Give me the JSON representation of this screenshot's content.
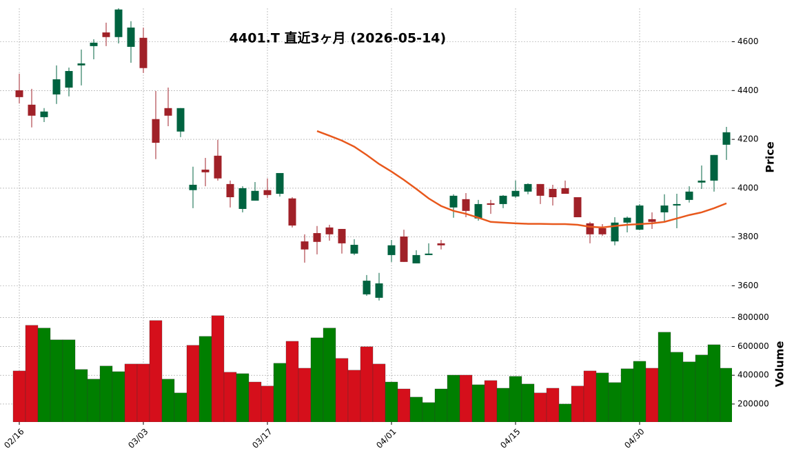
{
  "chart_data": [
    {
      "type": "candlestick",
      "title": "4401.T  直近3ヶ月  (2026-05-14)",
      "y_label": "Price",
      "open": [
        4401,
        4342,
        4291,
        4384,
        4412,
        4503,
        4582,
        4638,
        4619,
        4579,
        4616,
        4283,
        4328,
        4232,
        3992,
        4076,
        4133,
        4017,
        3915,
        3949,
        3992,
        3977,
        3958,
        3782,
        3816,
        3839,
        3833,
        3732,
        3565,
        3551,
        3726,
        3802,
        3692,
        3726,
        3774,
        3921,
        3955,
        3876,
        3938,
        3935,
        3966,
        3986,
        4017,
        3997,
        4000,
        3963,
        3856,
        3836,
        3782,
        3859,
        3830,
        3873,
        3901,
        3929,
        3952,
        4023,
        4031,
        4178
      ],
      "high": [
        4469,
        4407,
        4328,
        4503,
        4494,
        4568,
        4610,
        4678,
        4745,
        4684,
        4658,
        4398,
        4412,
        4328,
        4088,
        4124,
        4198,
        4031,
        4008,
        4025,
        4040,
        4062,
        3963,
        3811,
        3845,
        3850,
        3833,
        3791,
        3644,
        3653,
        3788,
        3830,
        3746,
        3774,
        3788,
        3975,
        3980,
        3952,
        3952,
        3972,
        4031,
        4020,
        4017,
        4014,
        4031,
        3963,
        3862,
        3853,
        3881,
        3884,
        3935,
        3901,
        3975,
        3977,
        4008,
        4093,
        4136,
        4251
      ],
      "low": [
        4347,
        4249,
        4271,
        4345,
        4376,
        4421,
        4528,
        4582,
        4593,
        4514,
        4472,
        4119,
        4254,
        4209,
        3918,
        4008,
        4031,
        3921,
        3901,
        3949,
        3960,
        3966,
        3839,
        3695,
        3729,
        3785,
        3732,
        3726,
        3559,
        3540,
        3698,
        3698,
        3692,
        3726,
        3749,
        3879,
        3881,
        3867,
        3895,
        3918,
        3960,
        3975,
        3935,
        3929,
        3977,
        3881,
        3774,
        3805,
        3766,
        3819,
        3828,
        3833,
        3862,
        3836,
        3941,
        3997,
        3986,
        4116
      ],
      "close": [
        4373,
        4297,
        4314,
        4446,
        4480,
        4511,
        4596,
        4619,
        4732,
        4658,
        4492,
        4186,
        4297,
        4328,
        4014,
        4065,
        4040,
        3963,
        4000,
        3989,
        3972,
        4062,
        3847,
        3749,
        3780,
        3811,
        3774,
        3768,
        3621,
        3610,
        3766,
        3698,
        3726,
        3732,
        3766,
        3969,
        3907,
        3935,
        3932,
        3969,
        3989,
        4017,
        3969,
        3963,
        3977,
        3881,
        3811,
        3811,
        3859,
        3879,
        3929,
        3862,
        3929,
        3935,
        3986,
        4031,
        4136,
        4229
      ],
      "up_color": "#006340",
      "down_color": "#a02128",
      "moving_average": {
        "color": "#e8581c",
        "values": [
          null,
          null,
          null,
          null,
          null,
          null,
          null,
          null,
          null,
          null,
          null,
          null,
          null,
          null,
          null,
          null,
          null,
          null,
          null,
          null,
          null,
          null,
          null,
          null,
          4234,
          4215,
          4195,
          4170,
          4136,
          4099,
          4068,
          4034,
          3997,
          3958,
          3927,
          3907,
          3895,
          3879,
          3862,
          3859,
          3856,
          3854,
          3854,
          3853,
          3853,
          3850,
          3842,
          3839,
          3845,
          3850,
          3853,
          3856,
          3862,
          3876,
          3890,
          3901,
          3918,
          3938
        ]
      },
      "ylim": [
        3528,
        4737
      ],
      "yticks": [
        3600,
        3800,
        4000,
        4200,
        4400,
        4600
      ],
      "grid": true
    },
    {
      "type": "bar",
      "y_label": "Volume",
      "categories": [
        "02/16",
        null,
        null,
        null,
        null,
        null,
        null,
        null,
        null,
        null,
        "03/03",
        null,
        null,
        null,
        null,
        null,
        null,
        null,
        null,
        null,
        "03/17",
        null,
        null,
        null,
        null,
        null,
        null,
        null,
        null,
        null,
        "04/01",
        null,
        null,
        null,
        null,
        null,
        null,
        null,
        null,
        null,
        "04/15",
        null,
        null,
        null,
        null,
        null,
        null,
        null,
        null,
        null,
        "04/30",
        null,
        null,
        null,
        null,
        null,
        null,
        null
      ],
      "values": [
        430000,
        747000,
        728000,
        646000,
        646000,
        440000,
        373000,
        464000,
        425000,
        478000,
        478000,
        780000,
        373000,
        277000,
        608000,
        670000,
        814000,
        421000,
        411000,
        353000,
        325000,
        483000,
        636000,
        449000,
        660000,
        728000,
        517000,
        435000,
        598000,
        478000,
        353000,
        305000,
        248000,
        210000,
        305000,
        401000,
        401000,
        334000,
        363000,
        310000,
        392000,
        339000,
        277000,
        310000,
        200000,
        325000,
        430000,
        416000,
        349000,
        445000,
        497000,
        449000,
        699000,
        560000,
        493000,
        541000,
        612000,
        449000
      ],
      "colors": [
        "#d50f1b",
        "#d50f1b",
        "#007f00",
        "#007f00",
        "#007f00",
        "#007f00",
        "#007f00",
        "#007f00",
        "#007f00",
        "#d50f1b",
        "#d50f1b",
        "#d50f1b",
        "#007f00",
        "#007f00",
        "#d50f1b",
        "#007f00",
        "#d50f1b",
        "#d50f1b",
        "#007f00",
        "#d50f1b",
        "#d50f1b",
        "#007f00",
        "#d50f1b",
        "#d50f1b",
        "#007f00",
        "#007f00",
        "#d50f1b",
        "#d50f1b",
        "#d50f1b",
        "#d50f1b",
        "#007f00",
        "#d50f1b",
        "#007f00",
        "#007f00",
        "#007f00",
        "#007f00",
        "#d50f1b",
        "#007f00",
        "#d50f1b",
        "#007f00",
        "#007f00",
        "#007f00",
        "#d50f1b",
        "#d50f1b",
        "#007f00",
        "#d50f1b",
        "#d50f1b",
        "#007f00",
        "#007f00",
        "#007f00",
        "#007f00",
        "#d50f1b",
        "#007f00",
        "#007f00",
        "#007f00",
        "#007f00",
        "#007f00",
        "#007f00"
      ],
      "ylim": [
        75000,
        880000
      ],
      "yticks": [
        200000,
        400000,
        600000,
        800000
      ],
      "grid": true
    }
  ]
}
